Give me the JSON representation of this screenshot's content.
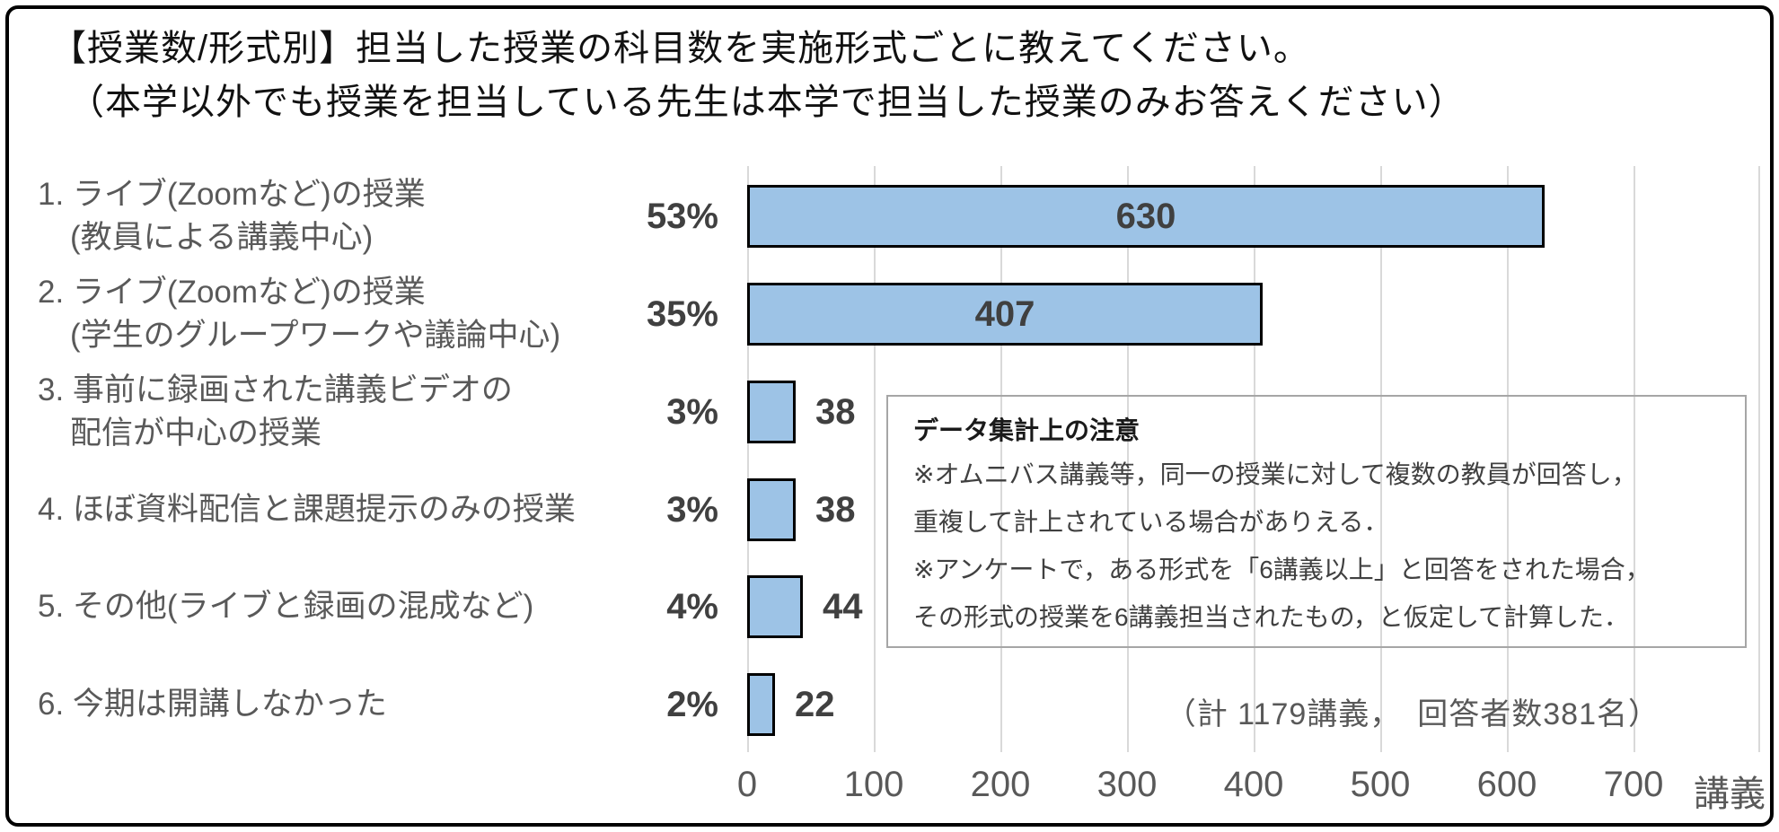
{
  "title": {
    "line1": "【授業数/形式別】担当した授業の科目数を実施形式ごとに教えてください。",
    "line2": "（本学以外でも授業を担当している先生は本学で担当した授業のみお答えください）"
  },
  "chart_data": {
    "type": "bar",
    "orientation": "horizontal",
    "title": "【授業数/形式別】担当した授業の科目数を実施形式ごとに教えてください。（本学以外でも授業を担当している先生は本学で担当した授業のみお答えください）",
    "xlabel_unit": "講義",
    "xlim": [
      0,
      800
    ],
    "x_ticks": [
      "0",
      "100",
      "200",
      "300",
      "400",
      "500",
      "600",
      "700"
    ],
    "grid": true,
    "rows": [
      {
        "label_line1": "1. ライブ(Zoomなど)の授業",
        "label_line2": "(教員による講義中心)",
        "percent": "53%",
        "value": 630,
        "value_text": "630"
      },
      {
        "label_line1": "2. ライブ(Zoomなど)の授業",
        "label_line2": "(学生のグループワークや議論中心)",
        "percent": "35%",
        "value": 407,
        "value_text": "407"
      },
      {
        "label_line1": "3. 事前に録画された講義ビデオの",
        "label_line2": "配信が中心の授業",
        "percent": "3%",
        "value": 38,
        "value_text": "38"
      },
      {
        "label_line1": "4. ほぼ資料配信と課題提示のみの授業",
        "label_line2": "",
        "percent": "3%",
        "value": 38,
        "value_text": "38"
      },
      {
        "label_line1": "5. その他(ライブと録画の混成など)",
        "label_line2": "",
        "percent": "4%",
        "value": 44,
        "value_text": "44"
      },
      {
        "label_line1": "6. 今期は開講しなかった",
        "label_line2": "",
        "percent": "2%",
        "value": 22,
        "value_text": "22"
      }
    ],
    "total_note": "（計 1179講義，　回答者数381名）",
    "colors": {
      "bar_fill": "#9DC3E6",
      "bar_border": "#000000",
      "gridline": "#D9D9D9",
      "label_gray": "#595959",
      "value_gray": "#404040"
    }
  },
  "note_box": {
    "title": "データ集計上の注意",
    "lines": [
      "※オムニバス講義等，同一の授業に対して複数の教員が回答し，",
      "重複して計上されている場合がありえる．",
      "※アンケートで，ある形式を「6講義以上」と回答をされた場合，",
      "その形式の授業を6講義担当されたもの，と仮定して計算した．"
    ]
  }
}
